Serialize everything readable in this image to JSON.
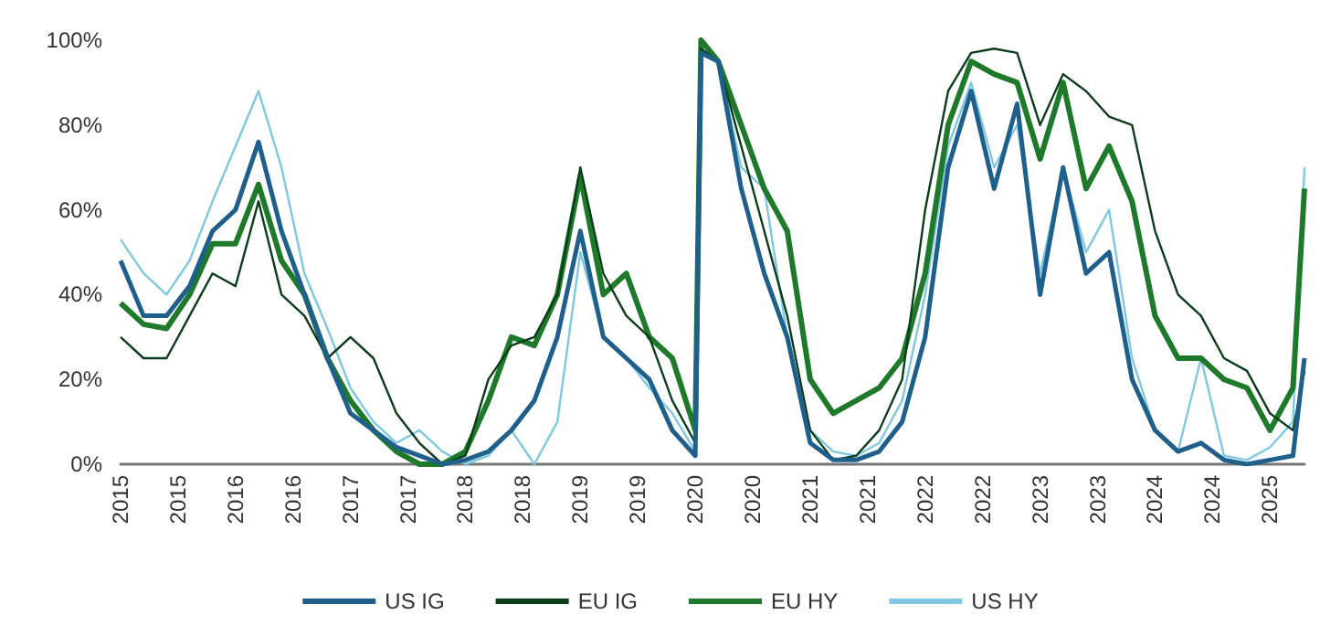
{
  "chart_data": {
    "type": "line",
    "x": [
      2015,
      2015.2,
      2015.4,
      2015.6,
      2015.8,
      2016,
      2016.2,
      2016.4,
      2016.6,
      2016.8,
      2017,
      2017.2,
      2017.4,
      2017.6,
      2017.8,
      2018,
      2018.2,
      2018.4,
      2018.6,
      2018.8,
      2019,
      2019.2,
      2019.4,
      2019.6,
      2019.8,
      2020,
      2020.05,
      2020.2,
      2020.4,
      2020.6,
      2020.8,
      2021,
      2021.2,
      2021.4,
      2021.6,
      2021.8,
      2022,
      2022.2,
      2022.4,
      2022.6,
      2022.8,
      2023,
      2023.2,
      2023.4,
      2023.6,
      2023.8,
      2024,
      2024.2,
      2024.4,
      2024.6,
      2024.8,
      2025,
      2025.2,
      2025.3
    ],
    "series": [
      {
        "name": "US IG",
        "color": "#1f5f8b",
        "values": [
          48,
          35,
          35,
          42,
          55,
          60,
          76,
          55,
          40,
          25,
          12,
          8,
          4,
          2,
          0,
          1,
          3,
          8,
          15,
          30,
          55,
          30,
          25,
          20,
          8,
          2,
          97,
          95,
          65,
          45,
          30,
          5,
          1,
          1,
          3,
          10,
          30,
          70,
          88,
          65,
          85,
          40,
          70,
          45,
          50,
          20,
          8,
          3,
          5,
          1,
          0,
          1,
          2,
          25
        ]
      },
      {
        "name": "EU IG",
        "color": "#0b3d1a",
        "values": [
          30,
          25,
          25,
          35,
          45,
          42,
          62,
          40,
          35,
          25,
          30,
          25,
          12,
          5,
          0,
          2,
          20,
          28,
          30,
          40,
          70,
          45,
          35,
          30,
          15,
          5,
          98,
          95,
          75,
          55,
          35,
          8,
          1,
          2,
          8,
          20,
          60,
          88,
          97,
          98,
          97,
          80,
          92,
          88,
          82,
          80,
          55,
          40,
          35,
          25,
          22,
          12,
          8,
          22
        ]
      },
      {
        "name": "EU HY",
        "color": "#1e7a2a",
        "values": [
          38,
          33,
          32,
          40,
          52,
          52,
          66,
          48,
          40,
          25,
          15,
          8,
          3,
          0,
          0,
          3,
          15,
          30,
          28,
          40,
          68,
          40,
          45,
          30,
          25,
          8,
          100,
          95,
          80,
          65,
          55,
          20,
          12,
          15,
          18,
          25,
          45,
          80,
          95,
          92,
          90,
          72,
          90,
          65,
          75,
          62,
          35,
          25,
          25,
          20,
          18,
          8,
          18,
          65
        ]
      },
      {
        "name": "US HY",
        "color": "#7ec8e3",
        "values": [
          53,
          45,
          40,
          48,
          62,
          75,
          88,
          70,
          45,
          32,
          18,
          10,
          5,
          8,
          3,
          0,
          2,
          8,
          0,
          10,
          50,
          30,
          25,
          18,
          12,
          3,
          98,
          95,
          70,
          65,
          30,
          8,
          3,
          2,
          5,
          15,
          40,
          75,
          90,
          70,
          80,
          45,
          70,
          50,
          60,
          25,
          8,
          3,
          25,
          2,
          1,
          4,
          10,
          70
        ]
      }
    ],
    "ylim": [
      0,
      100
    ],
    "yticks": [
      {
        "value": 0,
        "label": "0%"
      },
      {
        "value": 20,
        "label": "20%"
      },
      {
        "value": 40,
        "label": "40%"
      },
      {
        "value": 60,
        "label": "60%"
      },
      {
        "value": 80,
        "label": "80%"
      },
      {
        "value": 100,
        "label": "100%"
      }
    ],
    "xlim": [
      2015,
      2025.3
    ],
    "xticks": [
      {
        "value": 2015,
        "label": "2015"
      },
      {
        "value": 2015.5,
        "label": "2015"
      },
      {
        "value": 2016,
        "label": "2016"
      },
      {
        "value": 2016.5,
        "label": "2016"
      },
      {
        "value": 2017,
        "label": "2017"
      },
      {
        "value": 2017.5,
        "label": "2017"
      },
      {
        "value": 2018,
        "label": "2018"
      },
      {
        "value": 2018.5,
        "label": "2018"
      },
      {
        "value": 2019,
        "label": "2019"
      },
      {
        "value": 2019.5,
        "label": "2019"
      },
      {
        "value": 2020,
        "label": "2020"
      },
      {
        "value": 2020.5,
        "label": "2020"
      },
      {
        "value": 2021,
        "label": "2021"
      },
      {
        "value": 2021.5,
        "label": "2021"
      },
      {
        "value": 2022,
        "label": "2022"
      },
      {
        "value": 2022.5,
        "label": "2022"
      },
      {
        "value": 2023,
        "label": "2023"
      },
      {
        "value": 2023.5,
        "label": "2023"
      },
      {
        "value": 2024,
        "label": "2024"
      },
      {
        "value": 2024.5,
        "label": "2024"
      },
      {
        "value": 2025,
        "label": "2025"
      }
    ],
    "grid": false,
    "legend": "bottom",
    "marker": "none",
    "line_style": "solid"
  }
}
